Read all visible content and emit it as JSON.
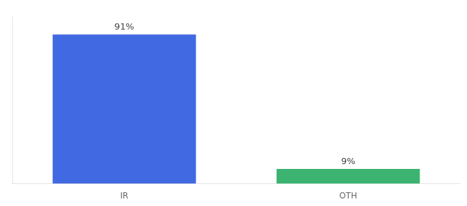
{
  "chart_data": {
    "type": "bar",
    "categories": [
      "IR",
      "OTH"
    ],
    "values": [
      91,
      9
    ],
    "value_labels": [
      "91%",
      "9%"
    ],
    "colors": [
      "#4169E1",
      "#3CB371"
    ],
    "ylim": [
      0,
      102
    ],
    "data_labels": true,
    "tick_labels": "x",
    "grid": false
  }
}
